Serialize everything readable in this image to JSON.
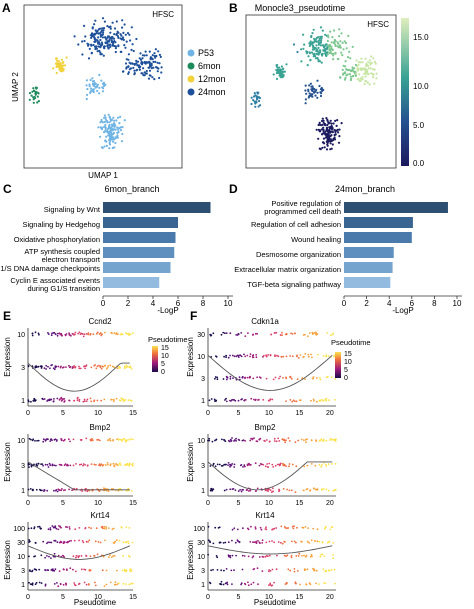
{
  "panel_letters": [
    "A",
    "B",
    "C",
    "D",
    "E",
    "F"
  ],
  "colors": {
    "p53": "#6fb4e4",
    "m6": "#1f8a5c",
    "m12": "#f1d23b",
    "m24": "#1d4f9a",
    "bar_dark": "#2d4f72"
  },
  "chart_data": [
    {
      "type": "scatter",
      "panel": "A",
      "title": "",
      "inset_label": "HFSC",
      "xlabel": "UMAP 1",
      "ylabel": "UMAP 2",
      "legend_position": "right",
      "series": [
        {
          "name": "P53",
          "color": "#6fb4e4"
        },
        {
          "name": "6mon",
          "color": "#1f8a5c"
        },
        {
          "name": "12mon",
          "color": "#f1d23b"
        },
        {
          "name": "24mon",
          "color": "#1d4f9a"
        }
      ]
    },
    {
      "type": "scatter",
      "panel": "B",
      "title": "Monocle3_pseudotime",
      "inset_label": "HFSC",
      "xlabel": "",
      "ylabel": "",
      "colorbar_ticks": [
        "15.0",
        "10.0",
        "5.0",
        "0.0"
      ],
      "colorbar_range": [
        0,
        18
      ]
    },
    {
      "type": "bar",
      "panel": "C",
      "title": "6mon_branch",
      "xlabel": "-LogP",
      "xlim": [
        0,
        10
      ],
      "xticks": [
        "0",
        "2",
        "4",
        "6",
        "8",
        "10"
      ],
      "categories": [
        "Signaling by Wnt",
        "Signaling by Hedgehog",
        "Oxidative phosphorylation",
        "ATP synthesis coupled electron transport",
        "G1/S DNA damage checkpoints",
        "Cyclin E associated events during G1/S transition"
      ],
      "values": [
        8.6,
        6.0,
        5.8,
        5.7,
        5.4,
        4.5
      ]
    },
    {
      "type": "bar",
      "panel": "D",
      "title": "24mon_branch",
      "xlabel": "-LogP",
      "xlim": [
        0,
        10
      ],
      "xticks": [
        "0",
        "2",
        "4",
        "6",
        "8",
        "10"
      ],
      "categories": [
        "Positive regulation of programmed cell death",
        "Regulation of cell adhesion",
        "Wound healing",
        "Desmosome organization",
        "Extracellular matrix organization",
        "TGF-beta signaling pathway"
      ],
      "values": [
        9.2,
        6.1,
        6.0,
        4.4,
        4.3,
        4.1
      ]
    },
    {
      "type": "scatter",
      "panel": "E",
      "genes": [
        "Ccnd2",
        "Bmp2",
        "Krt14"
      ],
      "xlabel": "Pseudotime",
      "ylabel": "Expression",
      "xlim": [
        0,
        15
      ],
      "xticks": [
        "0",
        "5",
        "10",
        "15"
      ],
      "legend_title": "Pseudotime",
      "legend_ticks": [
        "15",
        "10",
        "5",
        "0"
      ],
      "yticks": [
        [
          "10",
          "3",
          "1"
        ],
        [
          "10",
          "3",
          "1"
        ],
        [
          "100",
          "30",
          "10",
          "3",
          "1"
        ]
      ]
    },
    {
      "type": "scatter",
      "panel": "F",
      "genes": [
        "Cdkn1a",
        "Bmp2",
        "Krt14"
      ],
      "xlabel": "Pseudotime",
      "ylabel": "Expression",
      "xlim": [
        0,
        21
      ],
      "xticks": [
        "0",
        "5",
        "10",
        "15",
        "20"
      ],
      "legend_title": "Pseudotime",
      "legend_ticks": [
        "15",
        "10",
        "5",
        "0"
      ],
      "yticks": [
        [
          "30",
          "10",
          "3",
          "1"
        ],
        [
          "10",
          "3",
          "1"
        ],
        [
          "100",
          "30",
          "10",
          "3",
          "1"
        ]
      ]
    }
  ]
}
